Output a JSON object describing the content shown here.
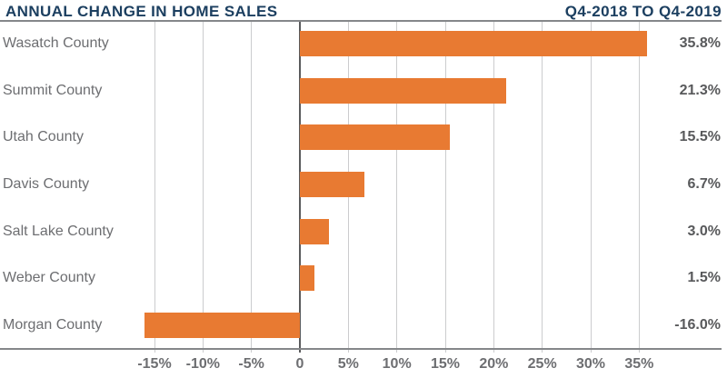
{
  "header": {
    "title": "ANNUAL CHANGE IN HOME SALES",
    "subtitle": "Q4-2018 TO Q4-2019"
  },
  "colors": {
    "bar_orange": "#E87A32",
    "title_navy": "#1C3F60",
    "gridline_gray": "#CBCCCE",
    "zero_line_gray": "#595A5C",
    "axis_rule_gray": "#85878A",
    "category_label_gray": "#6D6E71",
    "value_label_gray": "#58595B"
  },
  "chart_data": {
    "type": "bar",
    "orientation": "horizontal",
    "title": "ANNUAL CHANGE IN HOME SALES",
    "subtitle": "Q4-2018 TO Q4-2019",
    "categories": [
      "Wasatch County",
      "Summit County",
      "Utah County",
      "Davis County",
      "Salt Lake County",
      "Weber County",
      "Morgan County"
    ],
    "values": [
      35.8,
      21.3,
      15.5,
      6.7,
      3.0,
      1.5,
      -16.0
    ],
    "value_labels": [
      "35.8%",
      "21.3%",
      "15.5%",
      "6.7%",
      "3.0%",
      "1.5%",
      "-16.0%"
    ],
    "x_ticks": [
      -15,
      -10,
      -5,
      0,
      5,
      10,
      15,
      20,
      25,
      30,
      35
    ],
    "x_tick_labels": [
      "-15%",
      "-10%",
      "-5%",
      "0",
      "5%",
      "10%",
      "15%",
      "20%",
      "25%",
      "30%",
      "35%"
    ],
    "xlabel": "",
    "ylabel": "",
    "xlim": [
      -20,
      40
    ],
    "grid": true,
    "legend": false,
    "unit": "percent"
  }
}
